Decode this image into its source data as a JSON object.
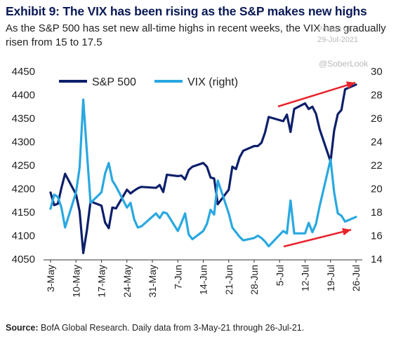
{
  "header": {
    "title": "Exhibit 9: The VIX has been rising as the S&P makes new highs",
    "subtitle": "As the S&P 500 has set new all-time highs in recent weeks, the VIX has gradually risen from 15 to 17.5"
  },
  "watermark": {
    "posted": "Posted on",
    "date": "29-Jul-2021",
    "handle": "@SoberLook"
  },
  "footer": {
    "source_label": "Source:",
    "source_text": "BofA Global Research.  Daily data from 3-May-21 through 26-Jul-21."
  },
  "colors": {
    "sp500": "#0d1f6a",
    "vix": "#29a8e0",
    "arrow": "#e8242c",
    "title": "#0a1a55"
  },
  "chart_data": {
    "type": "line",
    "title": "",
    "xlabel": "",
    "ylabel": "",
    "y2label": "",
    "legend": "top",
    "grid": false,
    "ylim": [
      4050,
      4450
    ],
    "y2lim": [
      14,
      30
    ],
    "yticks": [
      "4050",
      "4100",
      "4150",
      "4200",
      "4250",
      "4300",
      "4350",
      "4400",
      "4450"
    ],
    "y2ticks": [
      "14",
      "16",
      "18",
      "20",
      "22",
      "24",
      "26",
      "28",
      "30"
    ],
    "xticks": [
      "3-May",
      "10-May",
      "17-May",
      "24-May",
      "31-May",
      "7-Jun",
      "14-Jun",
      "21-Jun",
      "28-Jun",
      "5-Jul",
      "12-Jul",
      "19-Jul",
      "26-Jul"
    ],
    "x": [
      "3-May",
      "4-May",
      "5-May",
      "6-May",
      "7-May",
      "10-May",
      "11-May",
      "12-May",
      "13-May",
      "14-May",
      "17-May",
      "18-May",
      "19-May",
      "20-May",
      "21-May",
      "24-May",
      "25-May",
      "26-May",
      "27-May",
      "28-May",
      "1-Jun",
      "2-Jun",
      "3-Jun",
      "4-Jun",
      "7-Jun",
      "8-Jun",
      "9-Jun",
      "10-Jun",
      "11-Jun",
      "14-Jun",
      "15-Jun",
      "16-Jun",
      "17-Jun",
      "18-Jun",
      "21-Jun",
      "22-Jun",
      "23-Jun",
      "24-Jun",
      "25-Jun",
      "28-Jun",
      "29-Jun",
      "30-Jun",
      "1-Jul",
      "2-Jul",
      "6-Jul",
      "7-Jul",
      "8-Jul",
      "9-Jul",
      "12-Jul",
      "13-Jul",
      "14-Jul",
      "15-Jul",
      "16-Jul",
      "19-Jul",
      "20-Jul",
      "21-Jul",
      "22-Jul",
      "23-Jul",
      "26-Jul"
    ],
    "series": [
      {
        "name": "S&P 500",
        "axis": "left",
        "values": [
          4192,
          4165,
          4168,
          4202,
          4232,
          4188,
          4152,
          4063,
          4112,
          4173,
          4164,
          4128,
          4116,
          4160,
          4158,
          4198,
          4190,
          4196,
          4201,
          4204,
          4202,
          4208,
          4193,
          4230,
          4227,
          4228,
          4220,
          4240,
          4247,
          4255,
          4247,
          4224,
          4222,
          4167,
          4198,
          4247,
          4242,
          4267,
          4281,
          4291,
          4291,
          4298,
          4320,
          4353,
          4344,
          4358,
          4321,
          4370,
          4382,
          4370,
          4375,
          4360,
          4327,
          4258,
          4324,
          4359,
          4368,
          4412,
          4422
        ]
      },
      {
        "name": "VIX (right)",
        "axis": "right",
        "values": [
          18.3,
          19.5,
          19.3,
          18.4,
          16.7,
          19.7,
          21.8,
          27.6,
          23.1,
          18.8,
          19.7,
          21.3,
          22.2,
          20.7,
          20.2,
          18.4,
          18.8,
          17.4,
          16.7,
          16.8,
          17.9,
          17.5,
          18.0,
          17.9,
          16.4,
          17.1,
          17.9,
          16.1,
          15.7,
          16.4,
          17.0,
          18.2,
          17.8,
          20.7,
          17.9,
          16.7,
          16.3,
          15.9,
          15.6,
          15.8,
          16.0,
          15.8,
          15.5,
          15.1,
          16.4,
          16.2,
          19.0,
          16.2,
          16.2,
          17.1,
          16.3,
          17.0,
          18.5,
          22.5,
          19.7,
          17.9,
          17.7,
          17.2,
          17.6
        ]
      }
    ],
    "annotations": [
      "arrow-up-sp500",
      "arrow-up-vix"
    ]
  }
}
